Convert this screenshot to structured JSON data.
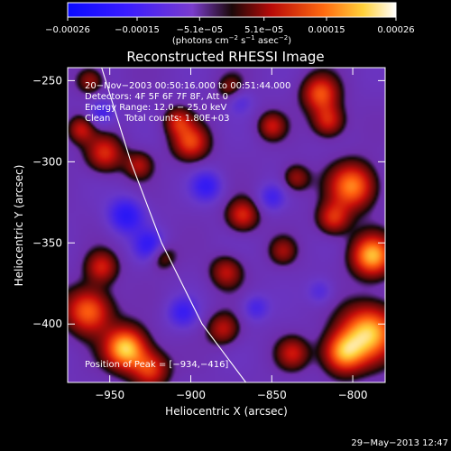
{
  "chart_data": {
    "type": "heatmap",
    "title": "Reconstructed RHESSI Image",
    "xlabel": "Heliocentric X (arcsec)",
    "ylabel": "Heliocentric Y (arcsec)",
    "xlim": [
      -976,
      -780
    ],
    "ylim": [
      -436,
      -242
    ],
    "x_ticks": [
      -950,
      -900,
      -850,
      -800
    ],
    "y_ticks": [
      -250,
      -300,
      -350,
      -400
    ],
    "x_tick_labels": [
      "−950",
      "−900",
      "−850",
      "−800"
    ],
    "y_tick_labels": [
      "−250",
      "−300",
      "−350",
      "−400"
    ],
    "colorbar": {
      "min": -0.00026,
      "max": 0.00026,
      "tick_values": [
        -0.00026,
        -0.00015,
        -5.1e-05,
        5.1e-05,
        0.00015,
        0.00026
      ],
      "tick_labels": [
        "−0.00026",
        "−0.00015",
        "−5.1e−05",
        "5.1e−05",
        "0.00015",
        "0.00026"
      ],
      "units_main": "(photons cm",
      "units_sup1": "−2",
      "units_mid": " s",
      "units_sup2": "−1",
      "units_mid2": " asec",
      "units_sup3": "−2",
      "units_end": ")"
    },
    "annotations": [
      "20−Nov−2003 00:50:16.000 to 00:51:44.000",
      "Detectors: 4F 5F 6F 7F 8F, Att 0",
      "Energy Range: 12.0 − 25.0 keV",
      "Clean     Total counts: 1.80E+03"
    ],
    "peak_label": "Position of Peak = [−934,−416]",
    "timestamp": "29−May−2013 12:47",
    "sources": [
      {
        "x": -940,
        "y": -415,
        "amp": 1.0,
        "s": 9
      },
      {
        "x": -963,
        "y": -392,
        "amp": 0.75,
        "s": 10
      },
      {
        "x": -925,
        "y": -428,
        "amp": 0.6,
        "s": 8
      },
      {
        "x": -790,
        "y": -405,
        "amp": 0.95,
        "s": 12
      },
      {
        "x": -788,
        "y": -358,
        "amp": 0.9,
        "s": 9
      },
      {
        "x": -806,
        "y": -418,
        "amp": 0.8,
        "s": 9
      },
      {
        "x": -800,
        "y": -315,
        "amp": 0.8,
        "s": 10
      },
      {
        "x": -812,
        "y": -335,
        "amp": 0.55,
        "s": 7
      },
      {
        "x": -820,
        "y": -258,
        "amp": 0.65,
        "s": 8
      },
      {
        "x": -815,
        "y": -275,
        "amp": 0.55,
        "s": 7
      },
      {
        "x": -900,
        "y": -288,
        "amp": 0.6,
        "s": 8
      },
      {
        "x": -908,
        "y": -275,
        "amp": 0.45,
        "s": 6
      },
      {
        "x": -953,
        "y": -295,
        "amp": 0.55,
        "s": 8
      },
      {
        "x": -968,
        "y": -280,
        "amp": 0.45,
        "s": 6
      },
      {
        "x": -932,
        "y": -302,
        "amp": 0.4,
        "s": 6
      },
      {
        "x": -868,
        "y": -333,
        "amp": 0.55,
        "s": 7
      },
      {
        "x": -850,
        "y": -278,
        "amp": 0.45,
        "s": 6
      },
      {
        "x": -878,
        "y": -368,
        "amp": 0.45,
        "s": 7
      },
      {
        "x": -843,
        "y": -355,
        "amp": 0.35,
        "s": 6
      },
      {
        "x": -955,
        "y": -365,
        "amp": 0.5,
        "s": 7
      },
      {
        "x": -918,
        "y": -358,
        "amp": 0.4,
        "s": 6
      },
      {
        "x": -880,
        "y": -403,
        "amp": 0.45,
        "s": 7
      },
      {
        "x": -837,
        "y": -418,
        "amp": 0.45,
        "s": 7
      },
      {
        "x": -835,
        "y": -310,
        "amp": 0.4,
        "s": 6
      },
      {
        "x": -875,
        "y": -255,
        "amp": 0.35,
        "s": 6
      },
      {
        "x": -962,
        "y": -250,
        "amp": 0.4,
        "s": 6
      },
      {
        "x": -940,
        "y": -333,
        "amp": -0.55,
        "s": 8
      },
      {
        "x": -925,
        "y": -352,
        "amp": -0.5,
        "s": 7
      },
      {
        "x": -890,
        "y": -315,
        "amp": -0.45,
        "s": 7
      },
      {
        "x": -905,
        "y": -393,
        "amp": -0.4,
        "s": 7
      },
      {
        "x": -860,
        "y": -390,
        "amp": -0.35,
        "s": 6
      },
      {
        "x": -955,
        "y": -270,
        "amp": -0.4,
        "s": 6
      },
      {
        "x": -850,
        "y": -322,
        "amp": -0.35,
        "s": 6
      },
      {
        "x": -820,
        "y": -380,
        "amp": -0.3,
        "s": 6
      },
      {
        "x": -870,
        "y": -262,
        "amp": -0.3,
        "s": 6
      }
    ],
    "limb": [
      [
        -955,
        -242
      ],
      [
        -937,
        -300
      ],
      [
        -918,
        -350
      ],
      [
        -893,
        -400
      ],
      [
        -866,
        -436
      ]
    ]
  }
}
